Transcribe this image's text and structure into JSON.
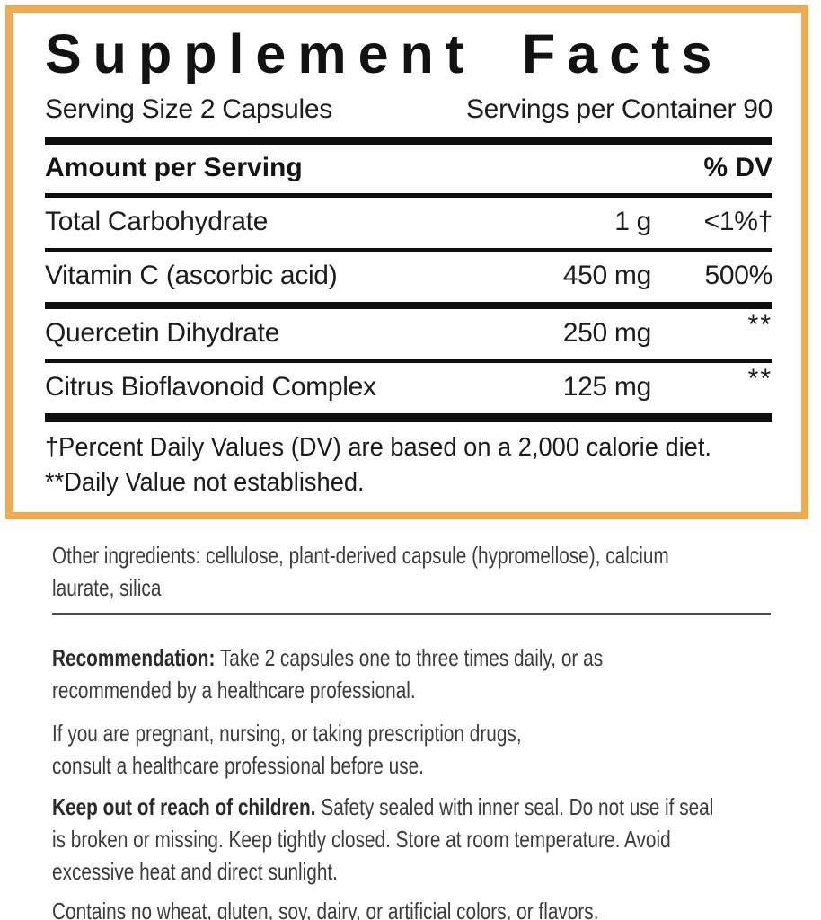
{
  "panel": {
    "title": "Supplement Facts",
    "serving_size": "Serving Size 2 Capsules",
    "servings_per_container": "Servings per Container 90",
    "header": {
      "amount": "Amount per Serving",
      "dv": "% DV"
    },
    "rows": [
      {
        "name": "Total Carbohydrate",
        "amount": "1 g",
        "dv": "<1%†"
      },
      {
        "name": "Vitamin C (ascorbic acid)",
        "amount": "450 mg",
        "dv": "500%"
      },
      {
        "name": "Quercetin Dihydrate",
        "amount": "250 mg",
        "dv": "**"
      },
      {
        "name": "Citrus Bioflavonoid Complex",
        "amount": "125 mg",
        "dv": "**"
      }
    ],
    "footnotes": "†Percent Daily Values (DV) are based on a 2,000 calorie diet.\n**Daily Value not established."
  },
  "info": {
    "other_ingredients": "Other ingredients: cellulose, plant-derived capsule (hypromellose), calcium\nlaurate, silica",
    "recommendation_label": "Recommendation:",
    "recommendation_text": " Take 2 capsules one to three times daily, or as\nrecommended by a healthcare professional.",
    "pregnancy_notice": "If you are pregnant, nursing, or taking prescription drugs,\nconsult a healthcare professional before use.",
    "keep_label": "Keep out of reach of children.",
    "keep_text": " Safety sealed with inner seal. Do not use if seal\nis broken or missing. Keep tightly closed. Store at room temperature. Avoid\nexcessive heat and direct sunlight.",
    "contains": "Contains no wheat, gluten, soy, dairy, or artificial colors, or flavors."
  },
  "colors": {
    "border": "#ECAC4F",
    "panel_ink": "#141414",
    "body_text": "#3C3C3C"
  }
}
